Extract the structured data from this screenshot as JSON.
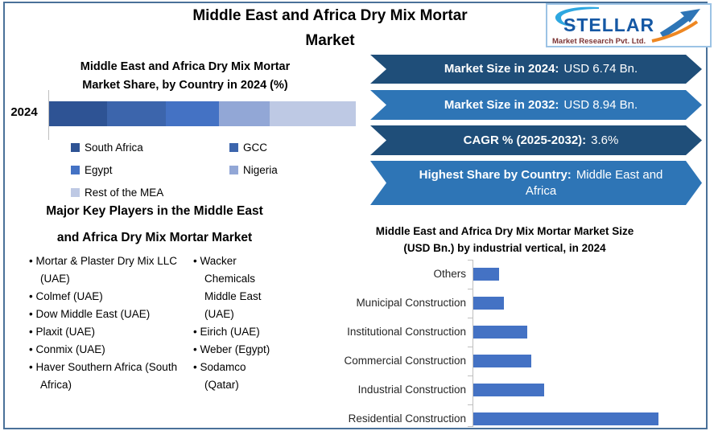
{
  "header": {
    "title_line1": "Middle East and Africa Dry Mix Mortar",
    "title_line2": "Market"
  },
  "logo": {
    "brand": "STELLAR",
    "subtitle": "Market Research Pvt. Ltd.",
    "brand_color": "#1558A4",
    "swoosh_color": "#2EA7E0",
    "arrow_color": "#2E75B6",
    "accent_color": "#EE8722",
    "subtitle_color": "#7C3434"
  },
  "banners": [
    {
      "label": "Market Size in 2024:",
      "value": "USD 6.74 Bn.",
      "color": "#1F4E79"
    },
    {
      "label": "Market Size in 2032:",
      "value": "USD 8.94 Bn.",
      "color": "#2E75B6"
    },
    {
      "label": "CAGR % (2025-2032):",
      "value": "3.6%",
      "color": "#1F4E79"
    },
    {
      "label": "Highest Share by Country:",
      "value": "Middle East and Africa",
      "color": "#2E75B6"
    }
  ],
  "key_players": {
    "title_line1": "Major Key Players in the Middle East",
    "title_line2": "and Africa Dry Mix Mortar Market",
    "column1": [
      "Mortar & Plaster Dry Mix LLC (UAE)",
      "Colmef (UAE)",
      "Dow Middle East (UAE)",
      "Plaxit (UAE)",
      "Conmix (UAE)",
      "Haver Southern Africa (South Africa)"
    ],
    "column2": [
      "Wacker Chemicals Middle East (UAE)",
      "Eirich (UAE)",
      "Weber (Egypt)",
      "Sodamco (Qatar)"
    ]
  },
  "chart_data": [
    {
      "type": "stacked-bar",
      "orientation": "horizontal",
      "title_line1": "Middle East and Africa Dry Mix Mortar",
      "title_line2": "Market Share, by Country in 2024 (%)",
      "category": "2024",
      "unit": "%",
      "series": [
        {
          "name": "South Africa",
          "value": 19,
          "color": "#2E5394"
        },
        {
          "name": "GCC",
          "value": 19,
          "color": "#3C65AC"
        },
        {
          "name": "Egypt",
          "value": 17.5,
          "color": "#4472C4"
        },
        {
          "name": "Nigeria",
          "value": 16.5,
          "color": "#92A7D6"
        },
        {
          "name": "Rest of the MEA",
          "value": 28,
          "color": "#BEC9E4"
        }
      ],
      "legend_position": "bottom"
    },
    {
      "type": "bar",
      "orientation": "horizontal",
      "title_line1": "Middle East and Africa Dry Mix Mortar Market Size",
      "title_line2": "(USD Bn.) by industrial vertical, in 2024",
      "categories": [
        "Others",
        "Municipal Construction",
        "Institutional Construction",
        "Commercial Construction",
        "Industrial Construction",
        "Residential Construction"
      ],
      "values": [
        0.41,
        0.49,
        0.86,
        0.92,
        1.13,
        2.94
      ],
      "bar_color": "#4472C4",
      "xlim": [
        0,
        3.2
      ],
      "grid": false,
      "ylabel": "",
      "xlabel": ""
    }
  ]
}
